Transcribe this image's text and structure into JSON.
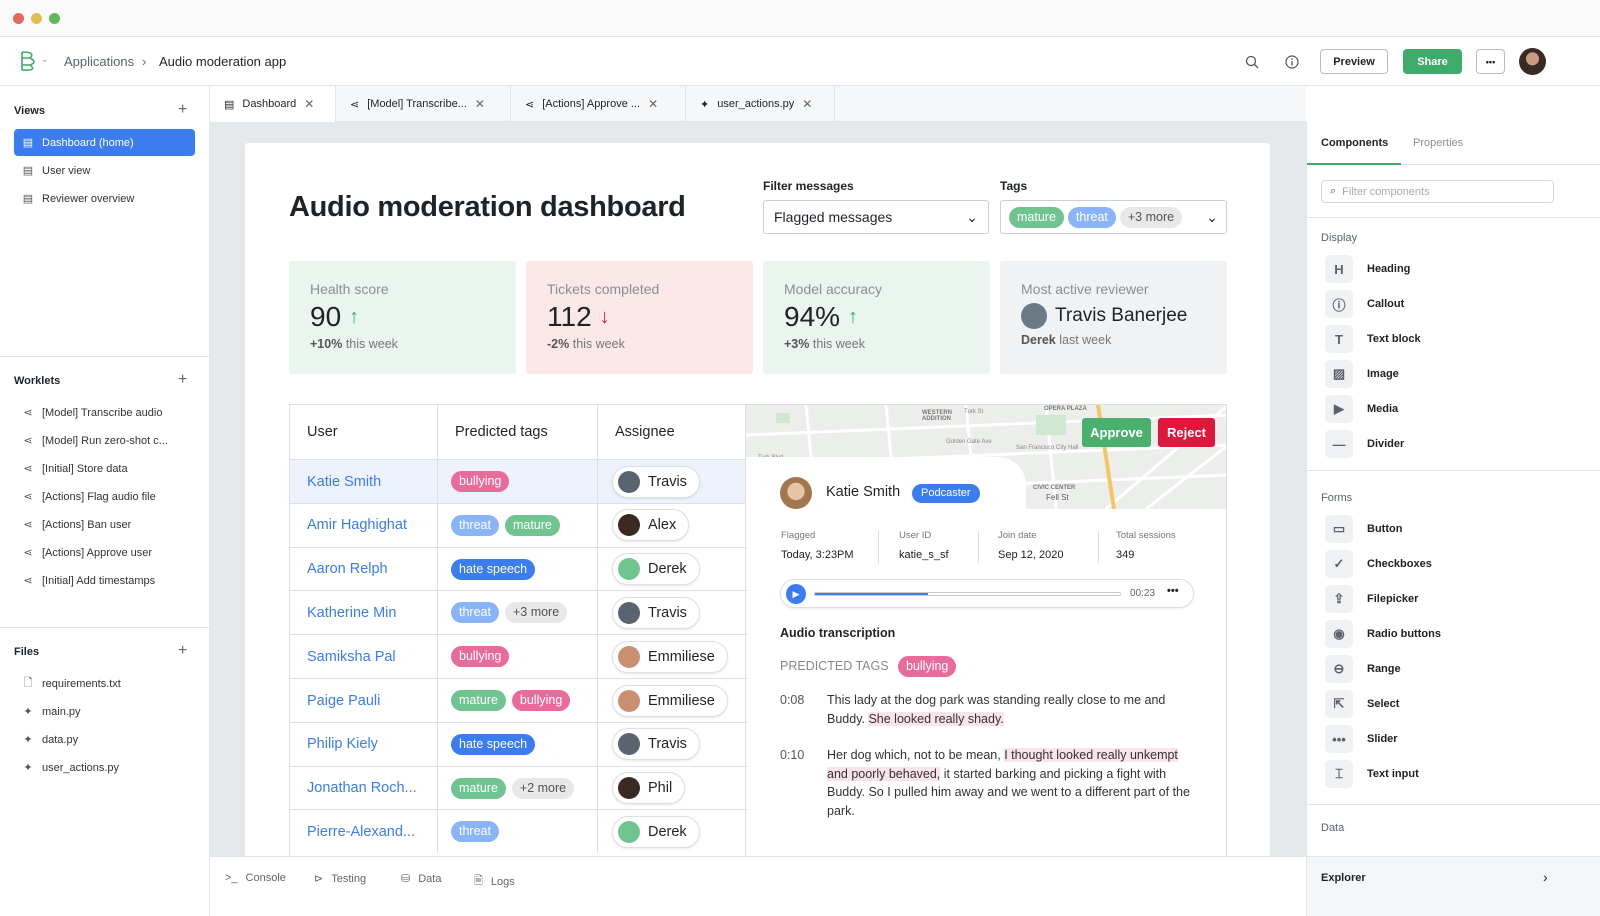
{
  "header": {
    "breadcrumb": [
      "Applications",
      "Audio moderation app"
    ],
    "preview": "Preview",
    "share": "Share",
    "more": "•••"
  },
  "sidebar": {
    "views_title": "Views",
    "views": [
      {
        "label": "Dashboard (home)",
        "active": true
      },
      {
        "label": "User view"
      },
      {
        "label": "Reviewer overview"
      }
    ],
    "worklets_title": "Worklets",
    "worklets": [
      "[Model] Transcribe audio",
      "[Model] Run zero-shot c...",
      "[Initial] Store data",
      "[Actions] Flag audio file",
      "[Actions] Ban user",
      "[Actions] Approve user",
      "[Initial] Add timestamps"
    ],
    "files_title": "Files",
    "files": [
      "requirements.txt",
      "main.py",
      "data.py",
      "user_actions.py"
    ]
  },
  "tabs": [
    "Dashboard",
    "[Model] Transcribe...",
    "[Actions] Approve ...",
    "user_actions.py"
  ],
  "dashboard": {
    "title": "Audio moderation dashboard",
    "filter_label": "Filter messages",
    "filter_value": "Flagged messages",
    "tags_label": "Tags",
    "tags": [
      "mature",
      "threat"
    ],
    "tags_more": "+3 more",
    "stats": [
      {
        "label": "Health score",
        "value": "90",
        "trend": "up",
        "change": "+10%",
        "suffix": "this week"
      },
      {
        "label": "Tickets completed",
        "value": "112",
        "trend": "down",
        "change": "-2%",
        "suffix": "this week"
      },
      {
        "label": "Model accuracy",
        "value": "94%",
        "trend": "up",
        "change": "+3%",
        "suffix": "this week"
      },
      {
        "label": "Most active reviewer",
        "value": "Travis Banerjee",
        "change": "Derek",
        "suffix": "last week"
      }
    ],
    "table": {
      "headers": [
        "User",
        "Predicted tags",
        "Assignee"
      ],
      "rows": [
        {
          "user": "Katie Smith",
          "tags": [
            "bullying"
          ],
          "assignee": "Travis"
        },
        {
          "user": "Amir Haghighat",
          "tags": [
            "threat",
            "mature"
          ],
          "assignee": "Alex"
        },
        {
          "user": "Aaron Relph",
          "tags": [
            "hate speech"
          ],
          "assignee": "Derek"
        },
        {
          "user": "Katherine Min",
          "tags": [
            "threat",
            "+3 more"
          ],
          "assignee": "Travis"
        },
        {
          "user": "Samiksha Pal",
          "tags": [
            "bullying"
          ],
          "assignee": "Emmiliese"
        },
        {
          "user": "Paige Pauli",
          "tags": [
            "mature",
            "bullying"
          ],
          "assignee": "Emmiliese"
        },
        {
          "user": "Philip Kiely",
          "tags": [
            "hate speech"
          ],
          "assignee": "Travis"
        },
        {
          "user": "Jonathan Roch...",
          "tags": [
            "mature",
            "+2 more"
          ],
          "assignee": "Phil"
        },
        {
          "user": "Pierre-Alexand...",
          "tags": [
            "threat"
          ],
          "assignee": "Derek"
        }
      ]
    },
    "detail": {
      "approve": "Approve",
      "reject": "Reject",
      "name": "Katie Smith",
      "role": "Podcaster",
      "meta": [
        {
          "label": "Flagged",
          "value": "Today, 3:23PM"
        },
        {
          "label": "User ID",
          "value": "katie_s_sf"
        },
        {
          "label": "Join date",
          "value": "Sep 12, 2020"
        },
        {
          "label": "Total sessions",
          "value": "349"
        }
      ],
      "audio_time": "00:23",
      "audio_progress": 0.37,
      "transcription_title": "Audio transcription",
      "predicted_label": "PREDICTED TAGS",
      "predicted_tag": "bullying",
      "lines": [
        {
          "ts": "0:08",
          "parts": [
            {
              "t": "This lady at the dog park was standing really close to me and Buddy. "
            },
            {
              "t": "She looked really shady.",
              "hl": true
            }
          ]
        },
        {
          "ts": "0:10",
          "parts": [
            {
              "t": "Her dog which, not to be mean, "
            },
            {
              "t": "I thought looked really unkempt and poorly behaved,",
              "hl": true
            },
            {
              "t": " it started barking and picking a fight with Buddy. So I pulled him away and we went to a different part of the park."
            }
          ]
        }
      ],
      "map_labels": [
        "WESTERN ADDITION",
        "Turk St",
        "Golden Gate Ave",
        "San Francisco City Hall",
        "CIVIC CENTER",
        "OPERA PLAZA",
        "Fell St",
        "Turk Blvd"
      ]
    }
  },
  "bottom": [
    "Console",
    "Testing",
    "Data",
    "Logs"
  ],
  "right": {
    "tabs": [
      "Components",
      "Properties"
    ],
    "filter_placeholder": "Filter components",
    "groups": [
      {
        "title": "Display",
        "items": [
          "Heading",
          "Callout",
          "Text block",
          "Image",
          "Media",
          "Divider"
        ]
      },
      {
        "title": "Forms",
        "items": [
          "Button",
          "Checkboxes",
          "Filepicker",
          "Radio buttons",
          "Range",
          "Select",
          "Slider",
          "Text input"
        ]
      },
      {
        "title": "Data",
        "items": []
      }
    ],
    "explorer": "Explorer"
  },
  "colors": {
    "accent": "#3b7cf0",
    "share": "#3faa6a",
    "reject": "#e0173d",
    "approve": "#4bb06e"
  }
}
